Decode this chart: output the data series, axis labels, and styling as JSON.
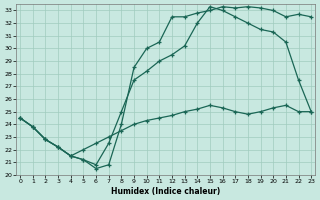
{
  "xlabel": "Humidex (Indice chaleur)",
  "bg_color": "#c8e8e0",
  "grid_color": "#a0ccbe",
  "line_color": "#1a6655",
  "xlim": [
    -0.3,
    23.3
  ],
  "ylim": [
    20,
    33.5
  ],
  "xticks": [
    0,
    1,
    2,
    3,
    4,
    5,
    6,
    7,
    8,
    9,
    10,
    11,
    12,
    13,
    14,
    15,
    16,
    17,
    18,
    19,
    20,
    21,
    22,
    23
  ],
  "yticks": [
    20,
    21,
    22,
    23,
    24,
    25,
    26,
    27,
    28,
    29,
    30,
    31,
    32,
    33
  ],
  "line_top_x": [
    0,
    1,
    2,
    3,
    4,
    5,
    6,
    7,
    8,
    9,
    10,
    11,
    12,
    13,
    14,
    15,
    16,
    17,
    18,
    19,
    20,
    21,
    22,
    23
  ],
  "line_top_y": [
    24.5,
    23.8,
    22.8,
    22.2,
    21.5,
    21.2,
    20.5,
    20.8,
    24.0,
    28.5,
    30.0,
    30.5,
    32.5,
    32.5,
    32.8,
    33.0,
    33.3,
    33.2,
    33.3,
    33.2,
    33.0,
    32.5,
    32.7,
    32.5
  ],
  "line_mid_x": [
    0,
    1,
    2,
    3,
    4,
    5,
    6,
    7,
    8,
    9,
    10,
    11,
    12,
    13,
    14,
    15,
    16,
    17,
    18,
    19,
    20,
    21,
    22,
    23
  ],
  "line_mid_y": [
    24.5,
    23.8,
    22.8,
    22.2,
    21.5,
    21.2,
    20.8,
    22.5,
    25.0,
    27.5,
    28.2,
    29.0,
    29.5,
    30.2,
    32.0,
    33.3,
    33.0,
    32.5,
    32.0,
    31.5,
    31.3,
    30.5,
    27.5,
    25.0
  ],
  "line_bot_x": [
    0,
    1,
    2,
    3,
    4,
    5,
    6,
    7,
    8,
    9,
    10,
    11,
    12,
    13,
    14,
    15,
    16,
    17,
    18,
    19,
    20,
    21,
    22,
    23
  ],
  "line_bot_y": [
    24.5,
    23.8,
    22.8,
    22.2,
    21.5,
    22.0,
    22.5,
    23.0,
    23.5,
    24.0,
    24.3,
    24.5,
    24.7,
    25.0,
    25.2,
    25.5,
    25.3,
    25.0,
    24.8,
    25.0,
    25.3,
    25.5,
    25.0,
    25.0
  ]
}
